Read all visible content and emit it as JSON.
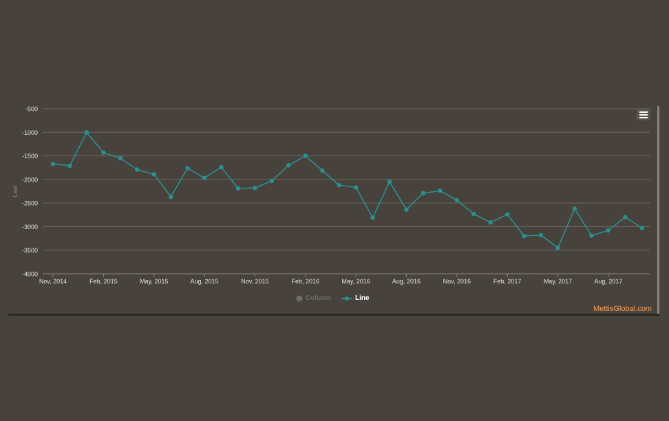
{
  "chart_data": {
    "type": "line",
    "ylabel": "Last",
    "ylim": [
      -4000,
      -500
    ],
    "yticks": [
      -500,
      -1000,
      -1500,
      -2000,
      -2500,
      -3000,
      -3500,
      -4000
    ],
    "xticks": [
      "Nov, 2014",
      "Feb, 2015",
      "May, 2015",
      "Aug, 2015",
      "Nov, 2015",
      "Feb, 2016",
      "May, 2016",
      "Aug, 2016",
      "Nov, 2016",
      "Feb, 2017",
      "May, 2017",
      "Aug, 2017"
    ],
    "grid": true,
    "legend_position": "bottom-center",
    "x": [
      "2014-11",
      "2014-12",
      "2015-01",
      "2015-02",
      "2015-03",
      "2015-04",
      "2015-05",
      "2015-06",
      "2015-07",
      "2015-08",
      "2015-09",
      "2015-10",
      "2015-11",
      "2015-12",
      "2016-01",
      "2016-02",
      "2016-03",
      "2016-04",
      "2016-05",
      "2016-06",
      "2016-07",
      "2016-08",
      "2016-09",
      "2016-10",
      "2016-11",
      "2016-12",
      "2017-01",
      "2017-02",
      "2017-03",
      "2017-04",
      "2017-05",
      "2017-06",
      "2017-07",
      "2017-08",
      "2017-09",
      "2017-10"
    ],
    "series": [
      {
        "name": "Line",
        "color": "#2b908f",
        "values": [
          -1670,
          -1710,
          -1000,
          -1430,
          -1550,
          -1790,
          -1890,
          -2370,
          -1760,
          -1970,
          -1740,
          -2190,
          -2180,
          -2030,
          -1700,
          -1500,
          -1810,
          -2120,
          -2170,
          -2810,
          -2050,
          -2640,
          -2290,
          -2240,
          -2440,
          -2730,
          -2910,
          -2740,
          -3200,
          -3180,
          -3450,
          -2620,
          -3190,
          -3080,
          -2800,
          -3030
        ]
      }
    ],
    "legend": [
      {
        "name": "Column",
        "color": "#6e6a66",
        "active": false
      },
      {
        "name": "Line",
        "color": "#2b908f",
        "active": true
      }
    ]
  },
  "credits": "MettisGlobal.com",
  "menu_icon": "hamburger-menu-icon"
}
